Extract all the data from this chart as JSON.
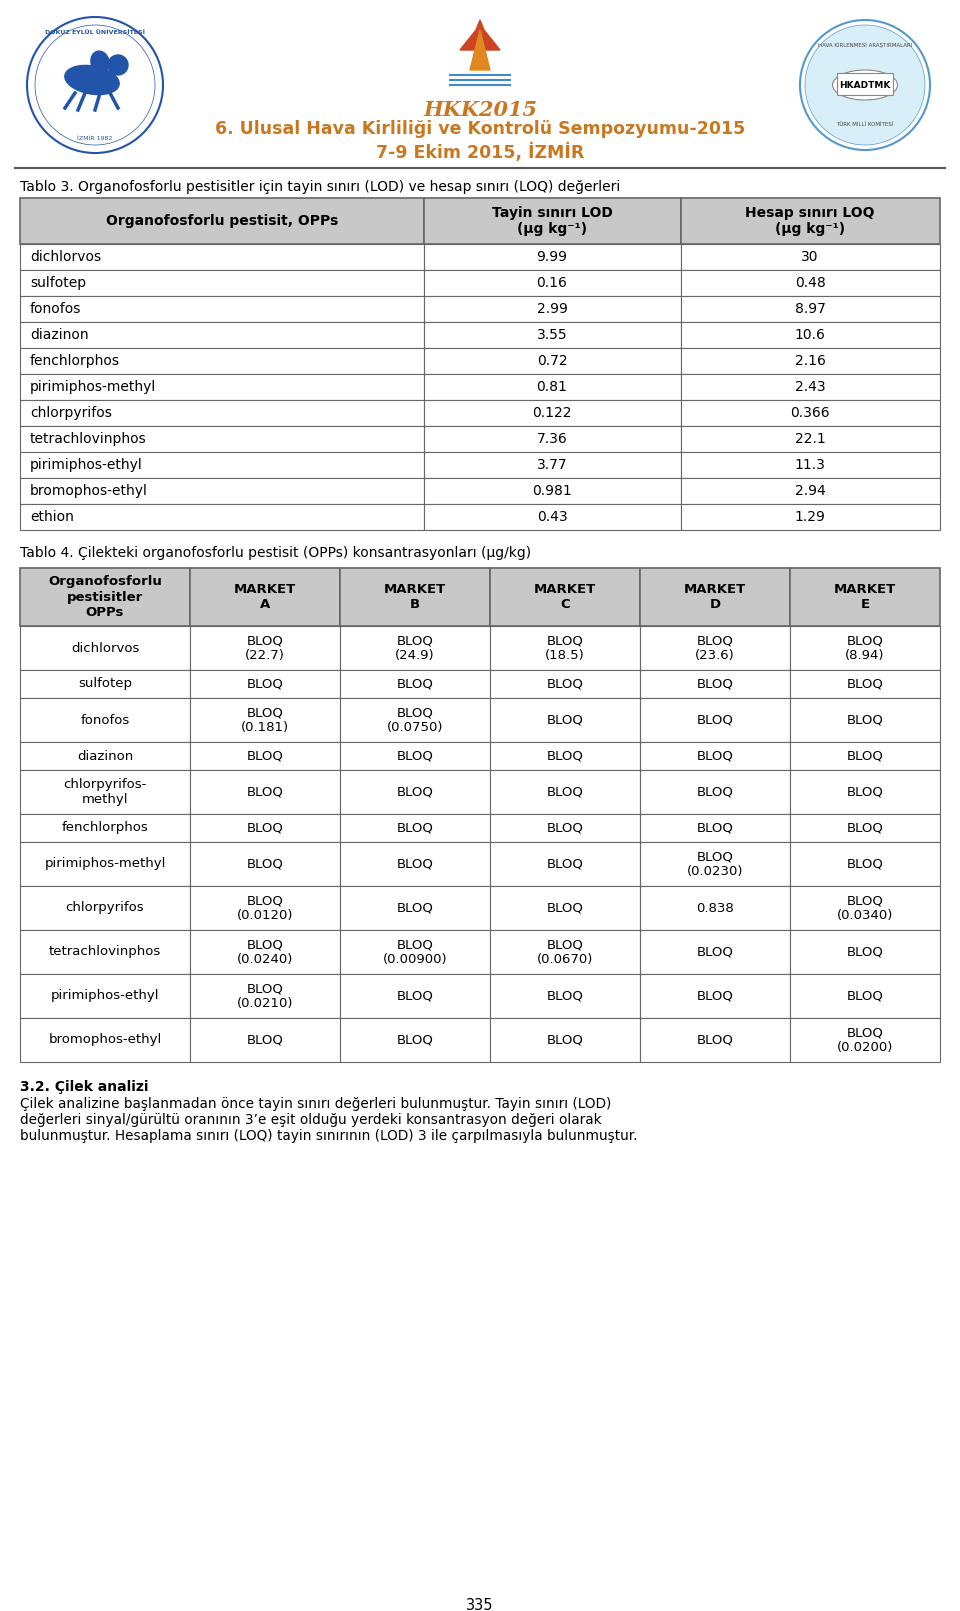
{
  "header_line1": "6. Ulusal Hava Kirliliği ve Kontrolü Sempozyumu-2015",
  "header_line2": "7-9 Ekim 2015, İZMİR",
  "hkk_text": "HKK2015",
  "table3_title": "Tablo 3. Organofosforlu pestisitler için tayin sınırı (LOD) ve hesap sınırı (LOQ) değerleri",
  "table3_col1_header": "Organofosforlu pestisit, OPPs",
  "table3_col2_header": "Tayin sınırı LOD\n(μg kg⁻¹)",
  "table3_col3_header": "Hesap sınırı LOQ\n(μg kg⁻¹)",
  "table3_rows": [
    [
      "dichlorvos",
      "9.99",
      "30"
    ],
    [
      "sulfotep",
      "0.16",
      "0.48"
    ],
    [
      "fonofos",
      "2.99",
      "8.97"
    ],
    [
      "diazinon",
      "3.55",
      "10.6"
    ],
    [
      "fenchlorphos",
      "0.72",
      "2.16"
    ],
    [
      "pirimiphos-methyl",
      "0.81",
      "2.43"
    ],
    [
      "chlorpyrifos",
      "0.122",
      "0.366"
    ],
    [
      "tetrachlovinphos",
      "7.36",
      "22.1"
    ],
    [
      "pirimiphos-ethyl",
      "3.77",
      "11.3"
    ],
    [
      "bromophos-ethyl",
      "0.981",
      "2.94"
    ],
    [
      "ethion",
      "0.43",
      "1.29"
    ]
  ],
  "table4_title": "Tablo 4. Çilekteki organofosforlu pestisit (OPPs) konsantrasyonları (μg/kg)",
  "table4_col1_header": "Organofosforlu\npestisitler\nOPPs",
  "table4_col_headers": [
    "MARKET\nA",
    "MARKET\nB",
    "MARKET\nC",
    "MARKET\nD",
    "MARKET\nE"
  ],
  "table4_rows": [
    [
      "dichlorvos",
      "BLOQ\n(22.7)",
      "BLOQ\n(24.9)",
      "BLOQ\n(18.5)",
      "BLOQ\n(23.6)",
      "BLOQ\n(8.94)"
    ],
    [
      "sulfotep",
      "BLOQ",
      "BLOQ",
      "BLOQ",
      "BLOQ",
      "BLOQ"
    ],
    [
      "fonofos",
      "BLOQ\n(0.181)",
      "BLOQ\n(0.0750)",
      "BLOQ",
      "BLOQ",
      "BLOQ"
    ],
    [
      "diazinon",
      "BLOQ",
      "BLOQ",
      "BLOQ",
      "BLOQ",
      "BLOQ"
    ],
    [
      "chlorpyrifos-\nmethyl",
      "BLOQ",
      "BLOQ",
      "BLOQ",
      "BLOQ",
      "BLOQ"
    ],
    [
      "fenchlorphos",
      "BLOQ",
      "BLOQ",
      "BLOQ",
      "BLOQ",
      "BLOQ"
    ],
    [
      "pirimiphos-methyl",
      "BLOQ",
      "BLOQ",
      "BLOQ",
      "BLOQ\n(0.0230)",
      "BLOQ"
    ],
    [
      "chlorpyrifos",
      "BLOQ\n(0.0120)",
      "BLOQ",
      "BLOQ",
      "0.838",
      "BLOQ\n(0.0340)"
    ],
    [
      "tetrachlovinphos",
      "BLOQ\n(0.0240)",
      "BLOQ\n(0.00900)",
      "BLOQ\n(0.0670)",
      "BLOQ",
      "BLOQ"
    ],
    [
      "pirimiphos-ethyl",
      "BLOQ\n(0.0210)",
      "BLOQ",
      "BLOQ",
      "BLOQ",
      "BLOQ"
    ],
    [
      "bromophos-ethyl",
      "BLOQ",
      "BLOQ",
      "BLOQ",
      "BLOQ",
      "BLOQ\n(0.0200)"
    ]
  ],
  "footer_bold": "3.2. Çilek analizi",
  "footer_lines": [
    "Çilek analizine başlanmadan önce tayin sınırı değerleri bulunmuştur. Tayin sınırı (LOD)",
    "değerleri sinyal/gürültü oranının 3’e eşit olduğu yerdeki konsantrasyon değeri olarak",
    "bulunmuştur. Hesaplama sınırı (LOQ) tayin sınırının (LOD) 3 ile çarpılmasıyla bulunmuştur."
  ],
  "page_number": "335",
  "orange_color": "#c87820",
  "header_bg_color": "#c8c8c8",
  "border_color": "#666666",
  "left_logo_color": "#2255aa",
  "right_logo_color": "#5599cc"
}
